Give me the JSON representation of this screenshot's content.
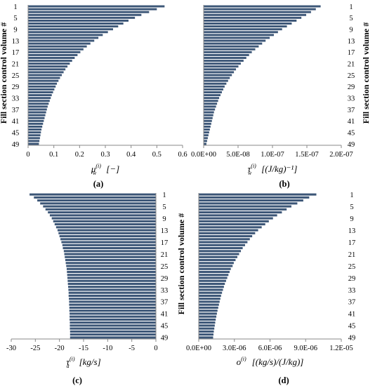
{
  "figure": {
    "y_label": "Fill section control volume #",
    "bar_color": "#3c5677",
    "axis_color": "#888888"
  },
  "chart_data": [
    {
      "type": "bar",
      "orientation": "horizontal",
      "panel_label": "(a)",
      "xlabel_symbol": "μ",
      "xlabel_sub": "w",
      "xlabel_sup": "(i)",
      "xlabel_unit": "[−]",
      "xlim": [
        0,
        0.6
      ],
      "xticks": [
        "0",
        "0.1",
        "0.2",
        "0.3",
        "0.4",
        "0.5",
        "0.6"
      ],
      "ylabel": "Fill section control volume #",
      "ytick_labels": [
        "1",
        "5",
        "9",
        "13",
        "17",
        "21",
        "25",
        "29",
        "33",
        "37",
        "41",
        "45",
        "49"
      ],
      "ytick_side": "left",
      "categories_range": [
        1,
        49
      ],
      "values": [
        0.53,
        0.5,
        0.47,
        0.44,
        0.415,
        0.39,
        0.37,
        0.35,
        0.33,
        0.31,
        0.29,
        0.273,
        0.257,
        0.242,
        0.228,
        0.215,
        0.203,
        0.192,
        0.181,
        0.171,
        0.162,
        0.153,
        0.145,
        0.138,
        0.131,
        0.124,
        0.118,
        0.112,
        0.107,
        0.102,
        0.097,
        0.092,
        0.088,
        0.084,
        0.08,
        0.076,
        0.073,
        0.07,
        0.067,
        0.064,
        0.061,
        0.058,
        0.055,
        0.052,
        0.05,
        0.048,
        0.046,
        0.044,
        0.042
      ]
    },
    {
      "type": "bar",
      "orientation": "horizontal",
      "panel_label": "(b)",
      "xlabel_symbol": "τ",
      "xlabel_sub": "w",
      "xlabel_sup": "(i)",
      "xlabel_unit": "[(J/kg)⁻¹]",
      "xlim": [
        0,
        2e-07
      ],
      "xticks": [
        "0.0E+00",
        "5.0E-08",
        "1.0E-07",
        "1.5E-07",
        "2.0E-07"
      ],
      "ylabel": "Fill section control volume #",
      "ytick_labels": [
        "1",
        "5",
        "9",
        "13",
        "17",
        "21",
        "25",
        "29",
        "33",
        "37",
        "41",
        "45",
        "49"
      ],
      "ytick_side": "right",
      "categories_range": [
        1,
        49
      ],
      "values": [
        1.7e-07,
        1.63e-07,
        1.56e-07,
        1.49e-07,
        1.42e-07,
        1.35e-07,
        1.28e-07,
        1.21e-07,
        1.14e-07,
        1.08e-07,
        1.02e-07,
        9.6e-08,
        9e-08,
        8.5e-08,
        8e-08,
        7.5e-08,
        7e-08,
        6.6e-08,
        6.2e-08,
        5.8e-08,
        5.4e-08,
        5.05e-08,
        4.7e-08,
        4.4e-08,
        4.1e-08,
        3.8e-08,
        3.55e-08,
        3.3e-08,
        3.05e-08,
        2.85e-08,
        2.65e-08,
        2.45e-08,
        2.25e-08,
        2.1e-08,
        1.95e-08,
        1.8e-08,
        1.65e-08,
        1.5e-08,
        1.4e-08,
        1.3e-08,
        1.2e-08,
        1.1e-08,
        1e-08,
        9e-09,
        8e-09,
        7e-09,
        6e-09,
        5e-09,
        4e-09
      ]
    },
    {
      "type": "bar",
      "orientation": "horizontal",
      "panel_label": "(c)",
      "xlabel_symbol": "τ",
      "xlabel_sub": "a",
      "xlabel_sup": "(i)",
      "xlabel_unit": "[kg/s]",
      "xlim": [
        -30,
        0
      ],
      "xticks": [
        "-30",
        "-25",
        "-20",
        "-15",
        "-10",
        "-5",
        "0"
      ],
      "ylabel": "",
      "ytick_labels": [
        "1",
        "5",
        "9",
        "13",
        "17",
        "21",
        "25",
        "29",
        "33",
        "37",
        "41",
        "45",
        "49"
      ],
      "ytick_side": "right",
      "categories_range": [
        1,
        49
      ],
      "values": [
        -26.2,
        -25.3,
        -24.6,
        -24.0,
        -23.4,
        -22.9,
        -22.4,
        -22.0,
        -21.6,
        -21.3,
        -21.0,
        -20.7,
        -20.4,
        -20.2,
        -20.0,
        -19.8,
        -19.6,
        -19.4,
        -19.3,
        -19.1,
        -19.0,
        -18.9,
        -18.8,
        -18.7,
        -18.6,
        -18.5,
        -18.45,
        -18.4,
        -18.35,
        -18.3,
        -18.25,
        -18.2,
        -18.15,
        -18.1,
        -18.1,
        -18.05,
        -18.0,
        -18.0,
        -17.95,
        -17.95,
        -17.9,
        -17.9,
        -17.9,
        -17.85,
        -17.85,
        -17.85,
        -17.8,
        -17.8,
        -17.8
      ]
    },
    {
      "type": "bar",
      "orientation": "horizontal",
      "panel_label": "(d)",
      "xlabel_symbol": "o",
      "xlabel_sub": "",
      "xlabel_sup": "(i)",
      "xlabel_unit": "[(kg/s)/(J/kg)]",
      "xlim": [
        0,
        1.2e-05
      ],
      "xticks": [
        "0.0E+00",
        "3.0E-06",
        "6.0E-06",
        "9.0E-06",
        "1.2E-05"
      ],
      "ylabel": "Fill section control volume #",
      "ytick_labels": [
        "1",
        "5",
        "9",
        "13",
        "17",
        "21",
        "25",
        "29",
        "33",
        "37",
        "41",
        "45",
        "49"
      ],
      "ytick_side": "right",
      "categories_range": [
        1,
        49
      ],
      "values": [
        9.9e-06,
        9.3e-06,
        8.8e-06,
        8.3e-06,
        7.8e-06,
        7.4e-06,
        7e-06,
        6.6e-06,
        6.25e-06,
        5.9e-06,
        5.6e-06,
        5.3e-06,
        5e-06,
        4.75e-06,
        4.5e-06,
        4.3e-06,
        4.1e-06,
        3.9e-06,
        3.7e-06,
        3.55e-06,
        3.4e-06,
        3.25e-06,
        3.1e-06,
        2.95e-06,
        2.85e-06,
        2.7e-06,
        2.6e-06,
        2.5e-06,
        2.4e-06,
        2.3e-06,
        2.2e-06,
        2.12e-06,
        2.04e-06,
        1.96e-06,
        1.88e-06,
        1.82e-06,
        1.76e-06,
        1.7e-06,
        1.64e-06,
        1.58e-06,
        1.53e-06,
        1.48e-06,
        1.43e-06,
        1.39e-06,
        1.35e-06,
        1.31e-06,
        1.27e-06,
        1.24e-06,
        1.21e-06
      ]
    }
  ]
}
